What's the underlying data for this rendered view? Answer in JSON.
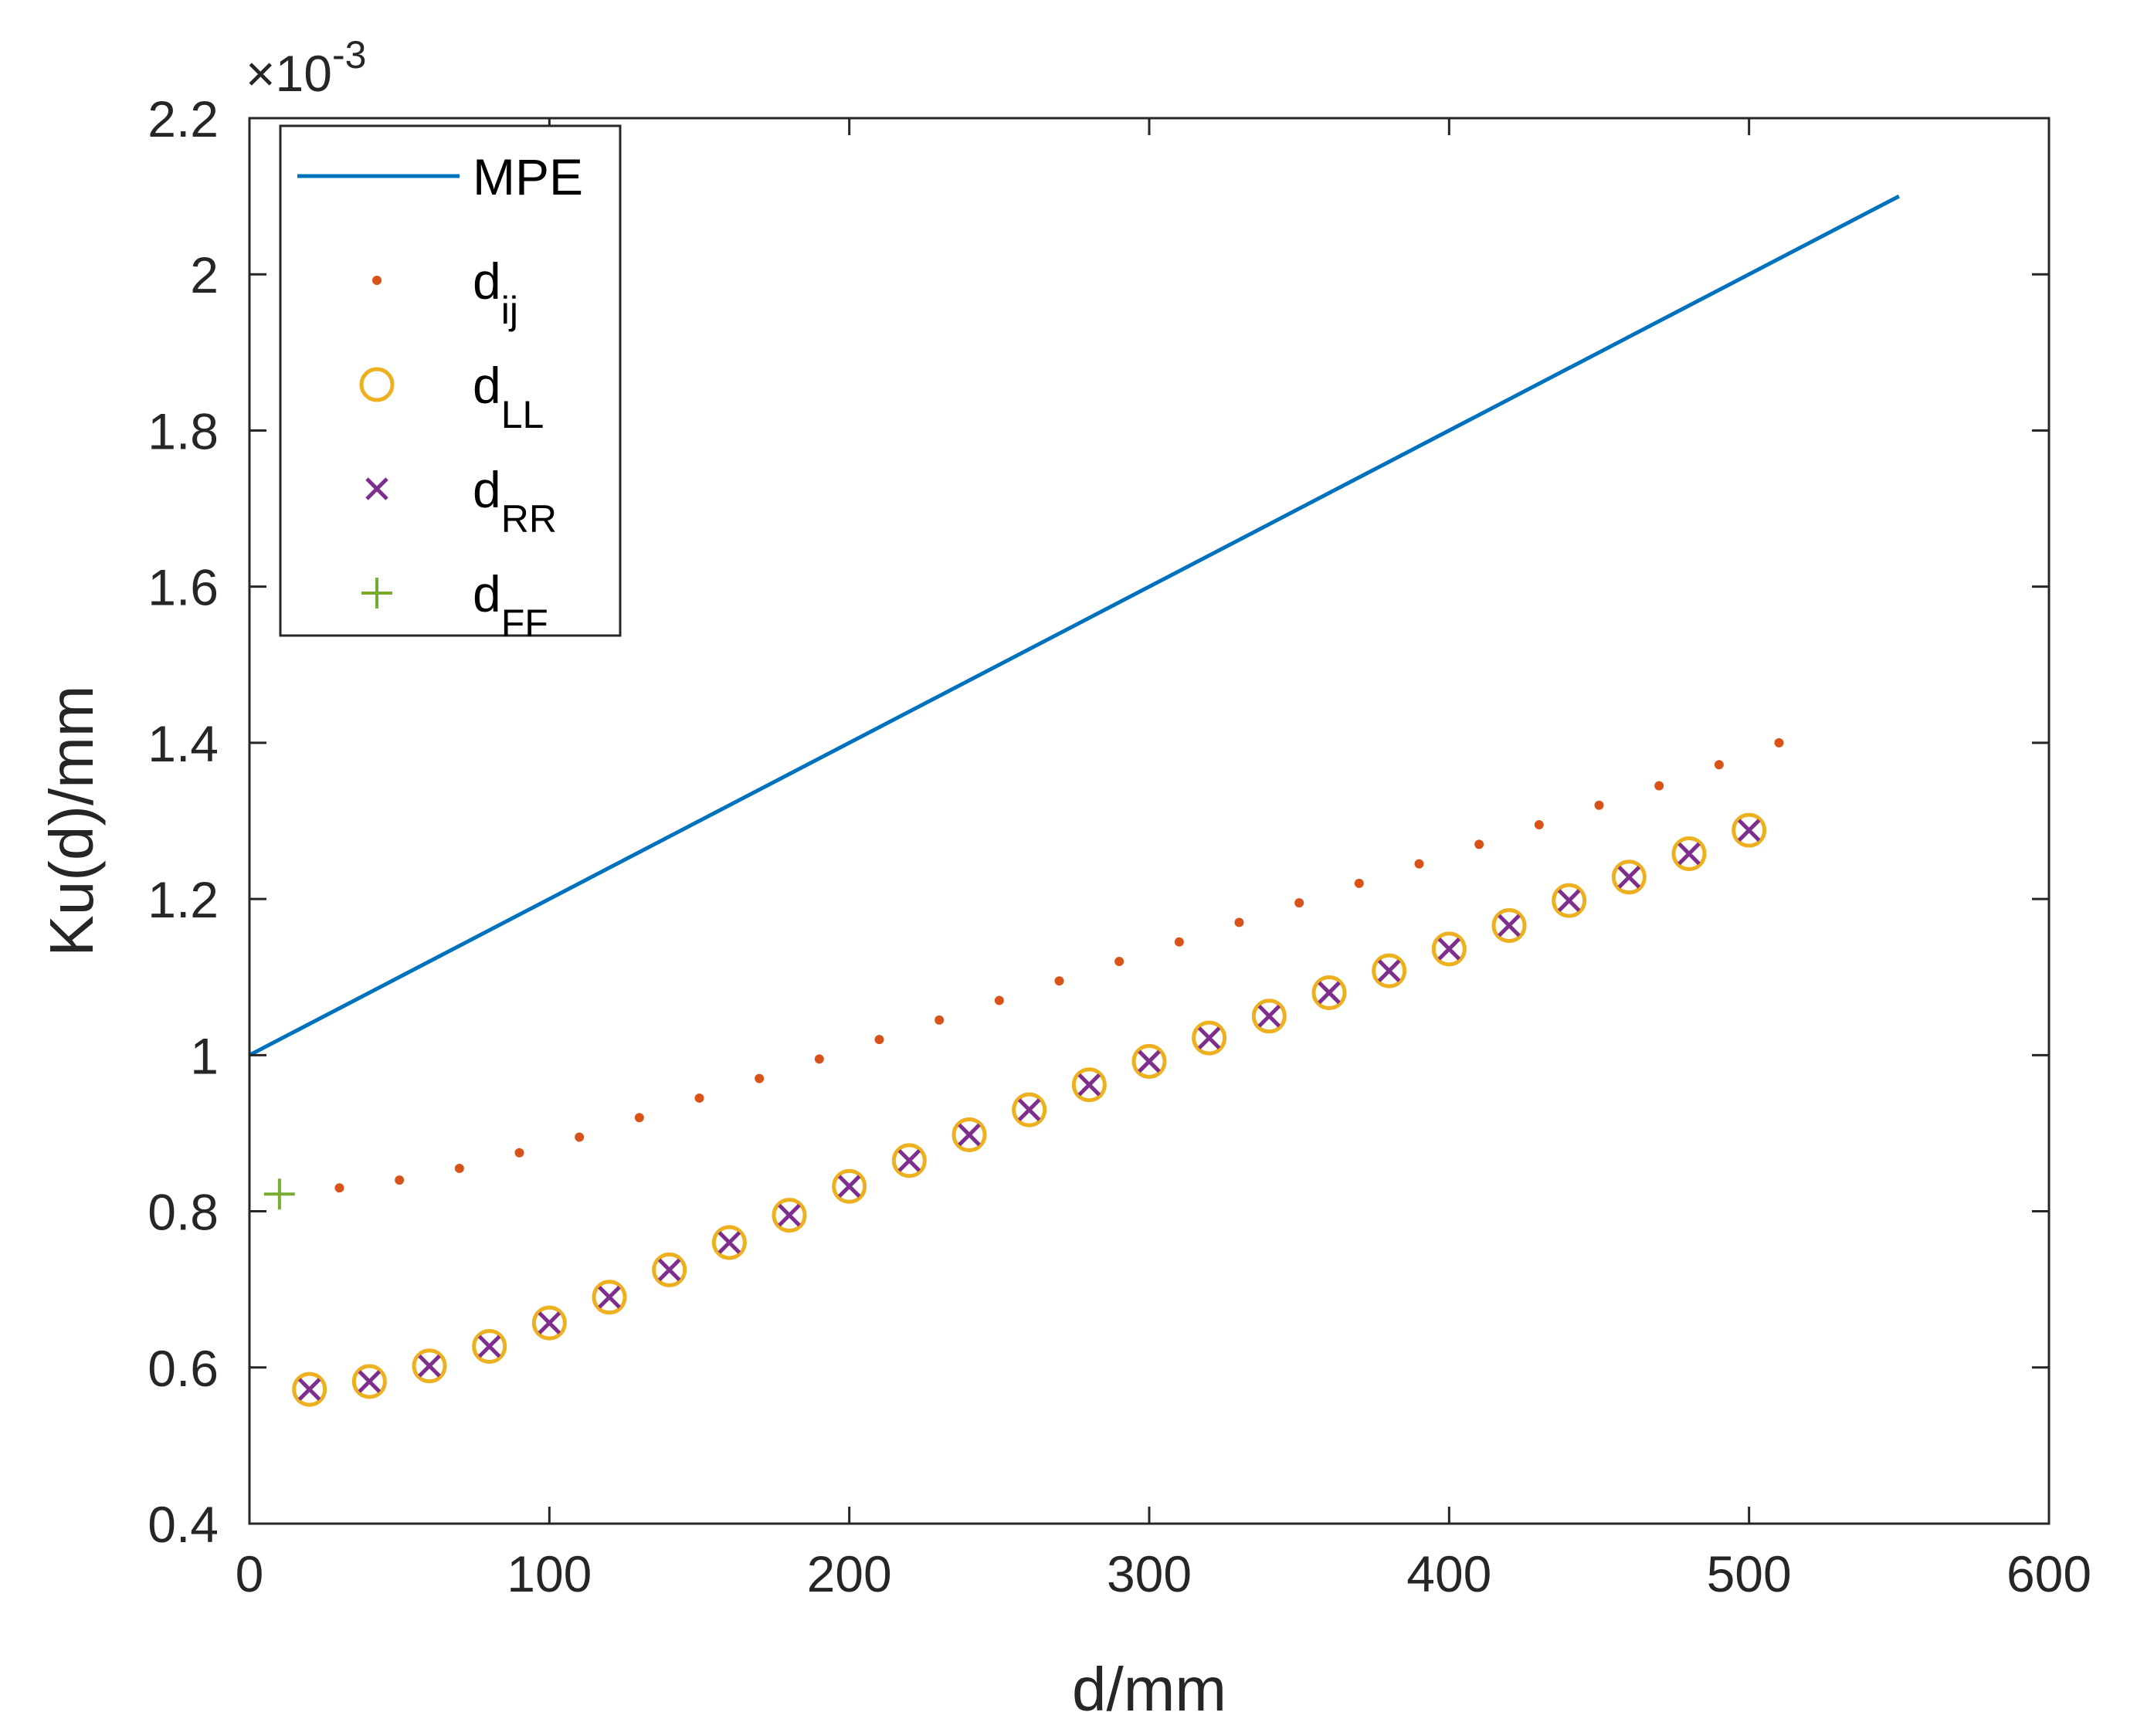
{
  "chart_data": {
    "type": "scatter",
    "title": "",
    "xlabel": "d/mm",
    "ylabel": "Ku(d)/mm",
    "xlim": [
      0,
      600
    ],
    "ylim": [
      0.4,
      2.2
    ],
    "y_exponent_label": "×10",
    "y_exponent_power": "-3",
    "xticks": [
      0,
      100,
      200,
      300,
      400,
      500,
      600
    ],
    "yticks": [
      0.4,
      0.6,
      0.8,
      1,
      1.2,
      1.4,
      1.6,
      1.8,
      2,
      2.2
    ],
    "xtick_labels": [
      "0",
      "100",
      "200",
      "300",
      "400",
      "500",
      "600"
    ],
    "ytick_labels": [
      "0.4",
      "0.6",
      "0.8",
      "1",
      "1.2",
      "1.4",
      "1.6",
      "1.8",
      "2",
      "2.2"
    ],
    "grid": false,
    "legend_position": "top-left",
    "series": [
      {
        "name": "MPE",
        "legend_main": "MPE",
        "legend_sub": "",
        "style": "line",
        "color": "#0072BD",
        "x": [
          0,
          550
        ],
        "y": [
          1.0,
          2.1
        ]
      },
      {
        "name": "dij",
        "legend_main": "d",
        "legend_sub": "ij",
        "style": "dot",
        "color": "#D95319",
        "x": [
          30,
          50,
          70,
          90,
          110,
          130,
          150,
          170,
          190,
          210,
          230,
          250,
          270,
          290,
          310,
          330,
          350,
          370,
          390,
          410,
          430,
          450,
          470,
          490,
          510
        ],
        "y": [
          0.83,
          0.84,
          0.855,
          0.875,
          0.895,
          0.92,
          0.945,
          0.97,
          0.995,
          1.02,
          1.045,
          1.07,
          1.095,
          1.12,
          1.145,
          1.17,
          1.195,
          1.22,
          1.245,
          1.27,
          1.295,
          1.32,
          1.345,
          1.372,
          1.4
        ]
      },
      {
        "name": "dLL",
        "legend_main": "d",
        "legend_sub": "LL",
        "style": "circle",
        "color": "#EDB120",
        "x": [
          20,
          40,
          60,
          80,
          100,
          120,
          140,
          160,
          180,
          200,
          220,
          240,
          260,
          280,
          300,
          320,
          340,
          360,
          380,
          400,
          420,
          440,
          460,
          480,
          500
        ],
        "y": [
          0.572,
          0.582,
          0.602,
          0.627,
          0.657,
          0.69,
          0.725,
          0.76,
          0.795,
          0.832,
          0.865,
          0.898,
          0.93,
          0.962,
          0.992,
          1.022,
          1.05,
          1.08,
          1.108,
          1.136,
          1.166,
          1.198,
          1.228,
          1.258,
          1.288
        ]
      },
      {
        "name": "dRR",
        "legend_main": "d",
        "legend_sub": "RR",
        "style": "x",
        "color": "#7E2F8E",
        "x": [
          20,
          40,
          60,
          80,
          100,
          120,
          140,
          160,
          180,
          200,
          220,
          240,
          260,
          280,
          300,
          320,
          340,
          360,
          380,
          400,
          420,
          440,
          460,
          480,
          500
        ],
        "y": [
          0.572,
          0.582,
          0.602,
          0.627,
          0.657,
          0.69,
          0.725,
          0.76,
          0.795,
          0.832,
          0.865,
          0.898,
          0.93,
          0.962,
          0.992,
          1.022,
          1.05,
          1.08,
          1.108,
          1.136,
          1.166,
          1.198,
          1.228,
          1.258,
          1.288
        ]
      },
      {
        "name": "dFF",
        "legend_main": "d",
        "legend_sub": "FF",
        "style": "plus",
        "color": "#77AC30",
        "x": [
          10
        ],
        "y": [
          0.822
        ]
      }
    ]
  }
}
